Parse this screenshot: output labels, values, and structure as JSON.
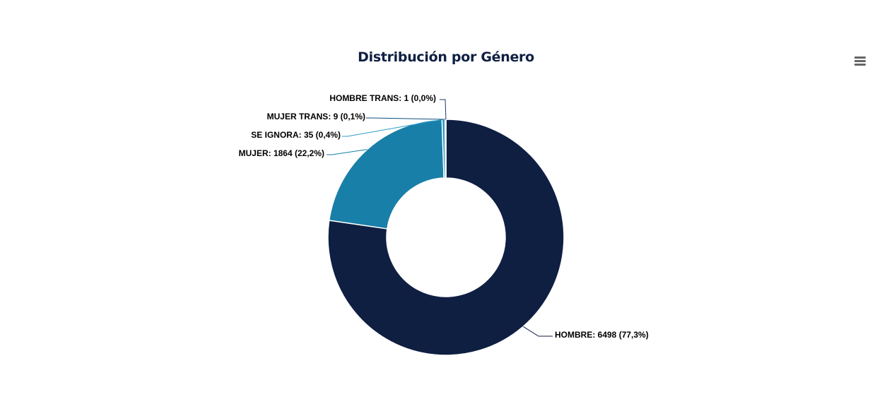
{
  "chart": {
    "title": "Distribución por Género",
    "menu_icon": "hamburger-menu-icon"
  },
  "chart_data": {
    "type": "pie",
    "donut": true,
    "title": "Distribución por Género",
    "categories": [
      "HOMBRE",
      "MUJER",
      "SE IGNORA",
      "MUJER TRANS",
      "HOMBRE TRANS"
    ],
    "values": [
      6498,
      1864,
      35,
      9,
      1
    ],
    "percentages": [
      77.3,
      22.2,
      0.4,
      0.1,
      0.0
    ],
    "labels": [
      "HOMBRE: 6498 (77,3%)",
      "MUJER: 1864 (22,2%)",
      "SE IGNORA: 35 (0,4%)",
      "MUJER TRANS: 9 (0,1%)",
      "HOMBRE TRANS: 1 (0,0%)"
    ],
    "colors": [
      "#0f1f42",
      "#187fa8",
      "#2b9cc7",
      "#0e4d7a",
      "#1c3a6b"
    ],
    "legend": "none"
  }
}
